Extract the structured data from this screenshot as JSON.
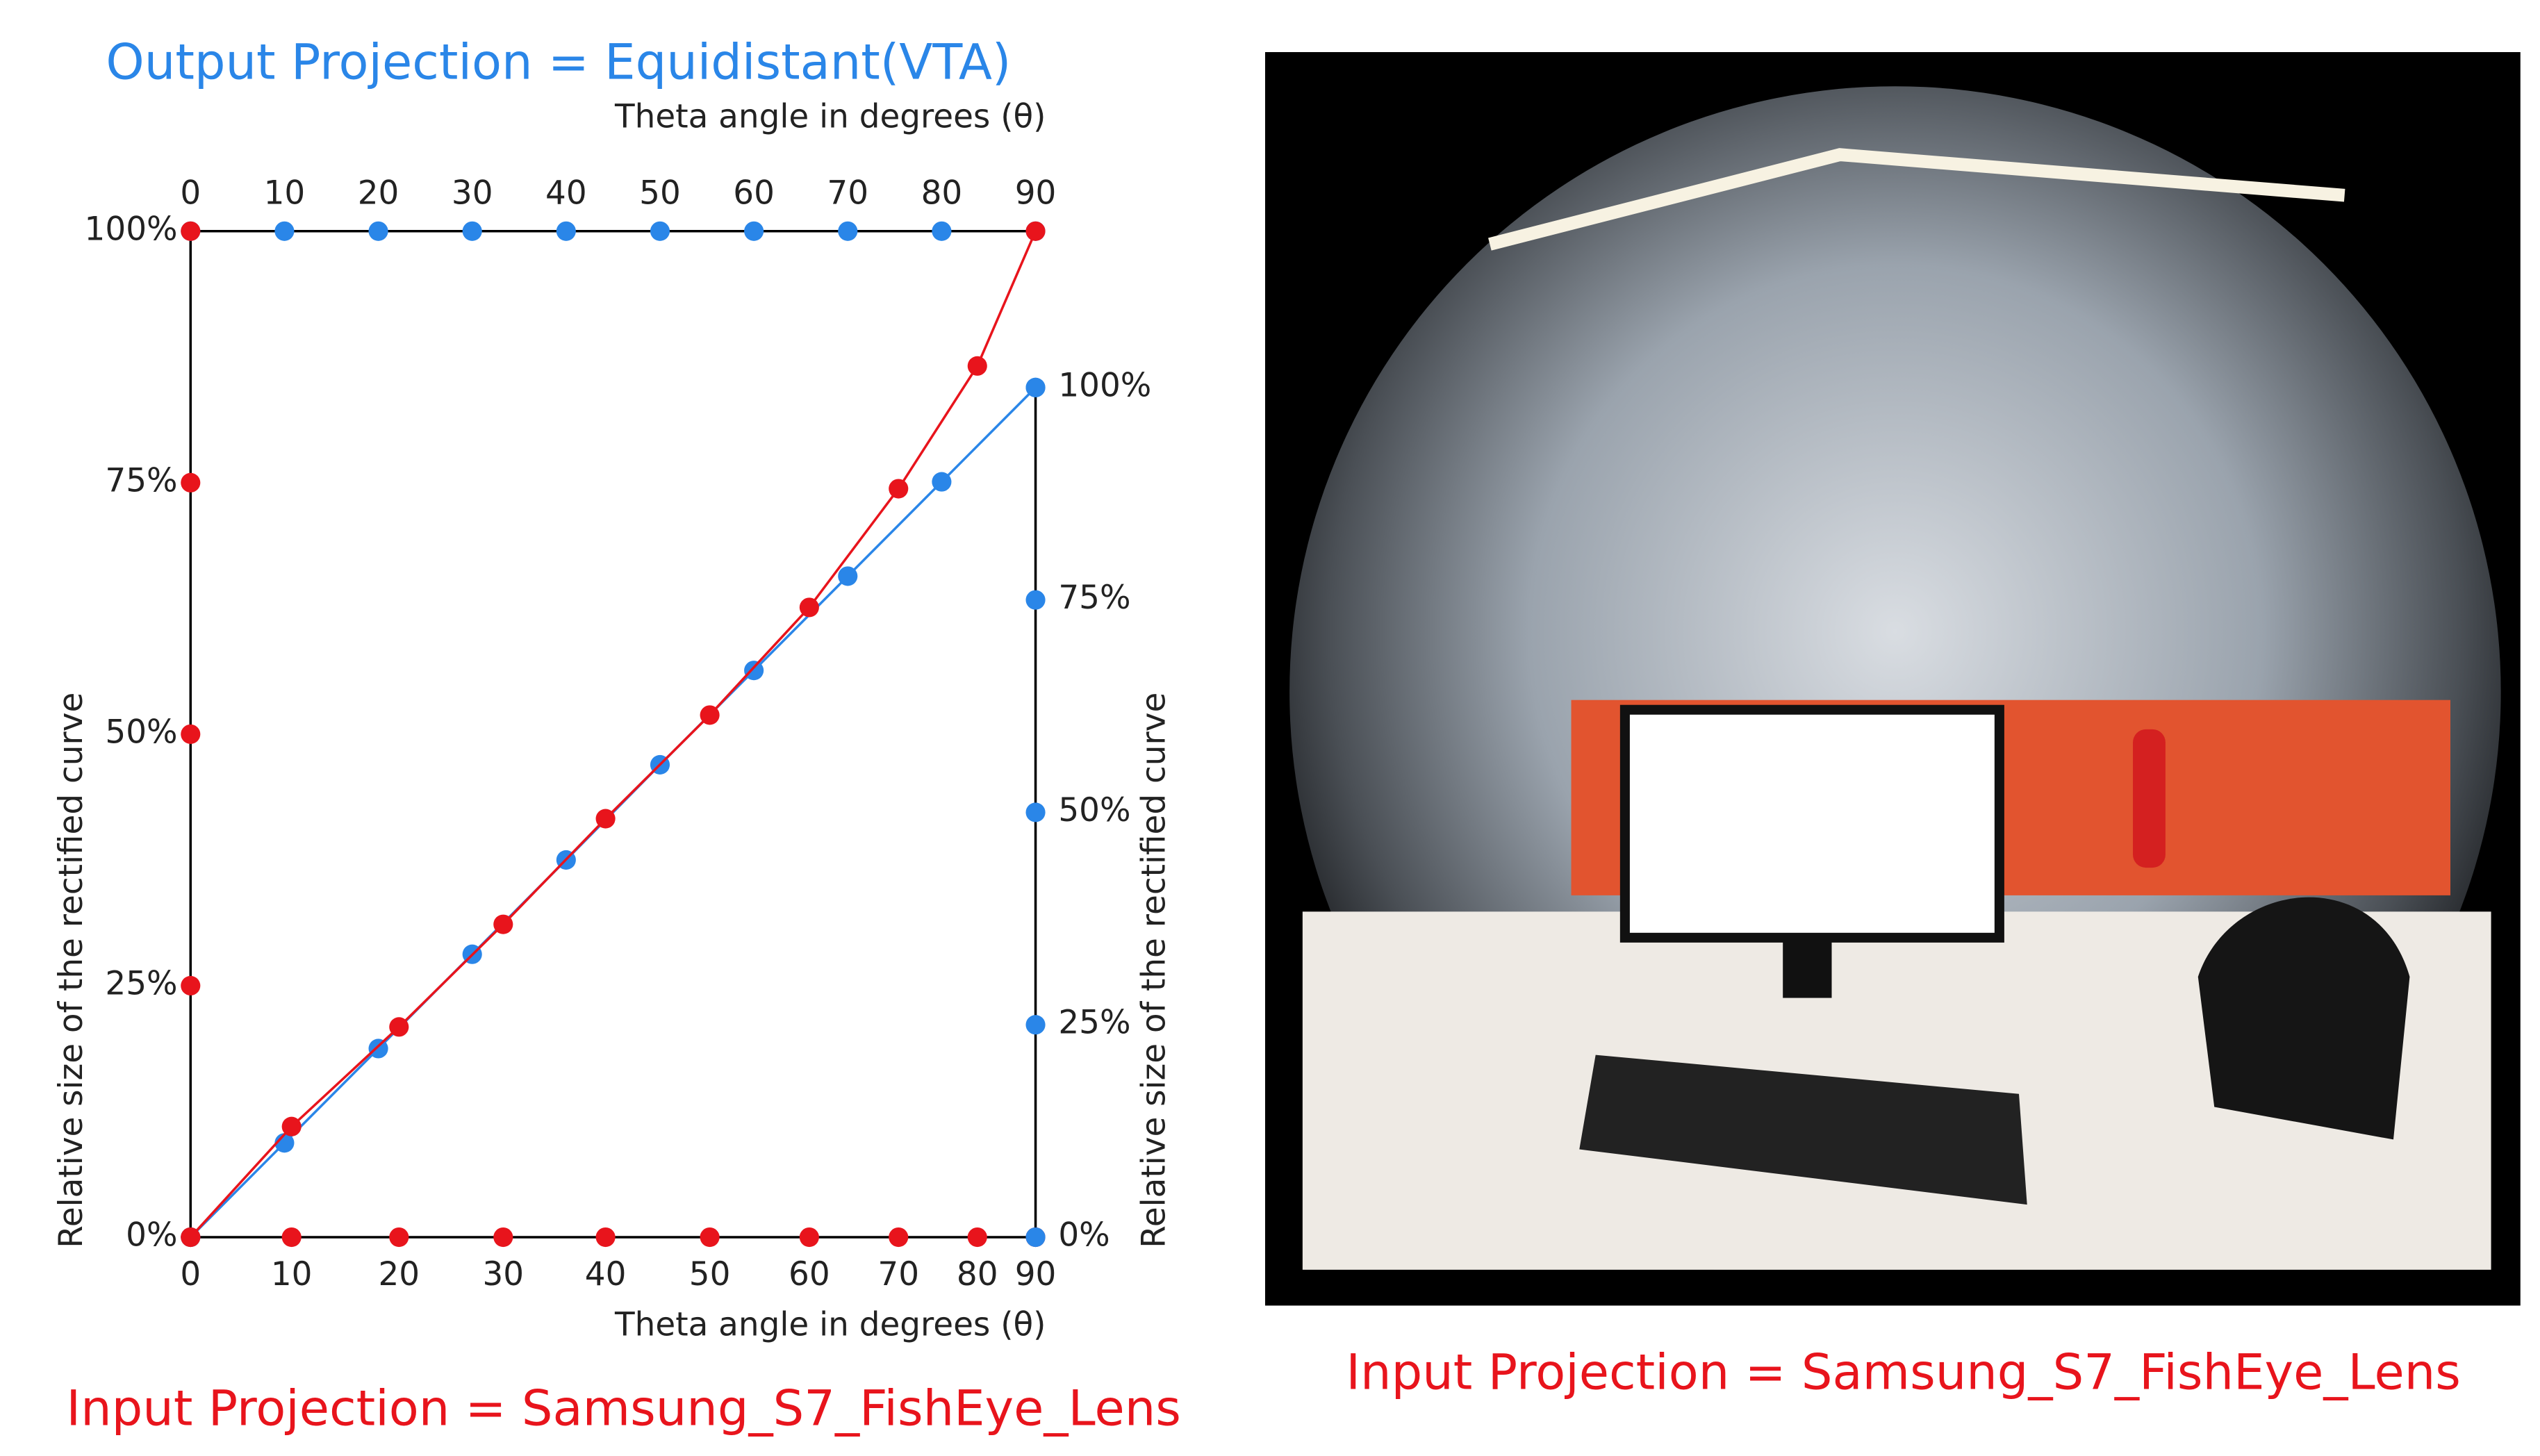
{
  "chart_data": {
    "type": "line",
    "xlabel": "Theta angle in degrees (θ)",
    "x2label": "Theta angle in degrees (θ)",
    "ylabel": "Relative size of the rectified curve",
    "y2label": "Relative size of the rectified curve",
    "xlim": [
      0,
      90
    ],
    "xticks": [
      0,
      10,
      20,
      30,
      40,
      50,
      60,
      70,
      80,
      90
    ],
    "ylim": [
      0,
      100
    ],
    "yticks": [
      {
        "value": 0,
        "label": "0%"
      },
      {
        "value": 25,
        "label": "25%"
      },
      {
        "value": 50,
        "label": "50%"
      },
      {
        "value": 75,
        "label": "75%"
      },
      {
        "value": 100,
        "label": "100%"
      }
    ],
    "y2lim": [
      0,
      118.4
    ],
    "y2ticks": [
      {
        "value": 0,
        "label": "0%"
      },
      {
        "value": 25,
        "label": "25%"
      },
      {
        "value": 50,
        "label": "50%"
      },
      {
        "value": 75,
        "label": "75%"
      },
      {
        "value": 100,
        "label": "100%"
      }
    ],
    "series": [
      {
        "name": "Output Projection = Equidistant(VTA)",
        "color": "#2a86e8",
        "axis": "y2",
        "x": [
          0,
          10,
          20,
          30,
          40,
          50,
          60,
          70,
          80,
          90
        ],
        "values": [
          0,
          11.1,
          22.2,
          33.3,
          44.4,
          55.6,
          66.7,
          77.8,
          88.9,
          100
        ]
      },
      {
        "name": "Input Projection = Samsung_S7_FishEye_Lens",
        "color": "#e8141c",
        "x": [
          0,
          10.76,
          22.2,
          33.3,
          44.2,
          55.3,
          65.9,
          75.4,
          83.8,
          90
        ],
        "x_labels": [
          0,
          10,
          20,
          30,
          40,
          50,
          60,
          70,
          80,
          90
        ],
        "values": [
          0,
          11.0,
          20.9,
          31.1,
          41.6,
          51.9,
          62.6,
          74.4,
          86.6,
          100
        ]
      }
    ]
  },
  "photo": {
    "caption": "Input Projection = Samsung_S7_FishEye_Lens"
  }
}
